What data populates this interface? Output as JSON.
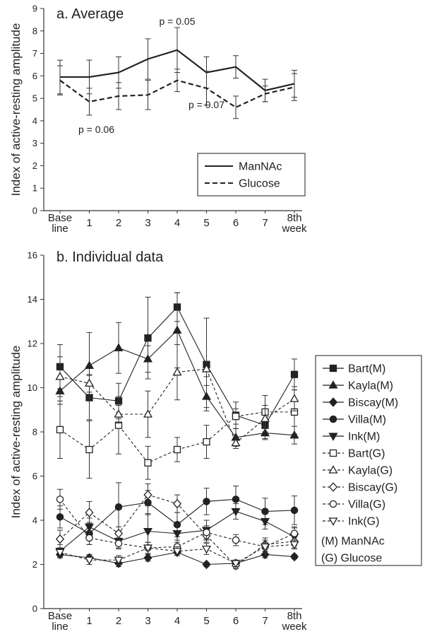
{
  "chart_data": [
    {
      "type": "line",
      "title": "a. Average",
      "ylabel": "Index of active-resting amplitude",
      "ylim": [
        0,
        9
      ],
      "yticks": [
        "0",
        "1",
        "2",
        "3",
        "4",
        "5",
        "6",
        "7",
        "8",
        "9"
      ],
      "categories": [
        "Base line",
        "1",
        "2",
        "3",
        "4",
        "5",
        "6",
        "7",
        "8th week"
      ],
      "legend_position": "right, lower-middle",
      "series": [
        {
          "name": "ManNAc",
          "style": "solid",
          "values": [
            5.95,
            5.95,
            6.15,
            6.75,
            7.15,
            6.15,
            6.4,
            5.35,
            5.65
          ],
          "err": [
            0.75,
            0.75,
            0.7,
            0.9,
            1.0,
            0.7,
            0.5,
            0.5,
            0.6
          ]
        },
        {
          "name": "Glucose",
          "style": "dashed",
          "values": [
            5.8,
            4.85,
            5.1,
            5.15,
            5.8,
            5.45,
            4.6,
            5.2,
            5.5
          ],
          "err": [
            0.65,
            0.6,
            0.6,
            0.65,
            0.5,
            0.75,
            0.5,
            0.35,
            0.6
          ]
        }
      ],
      "annotations": [
        {
          "text": "p = 0.05",
          "x": "4"
        },
        {
          "text": "p = 0.07",
          "x": "5"
        },
        {
          "text": "p = 0.06",
          "x": "1"
        }
      ]
    },
    {
      "type": "line",
      "title": "b. Individual data",
      "ylabel": "Index of active-resting amplitude",
      "ylim": [
        0,
        16
      ],
      "yticks": [
        "0",
        "2",
        "4",
        "6",
        "8",
        "10",
        "12",
        "14",
        "16"
      ],
      "categories": [
        "Base line",
        "1",
        "2",
        "3",
        "4",
        "5",
        "6",
        "7",
        "8th week"
      ],
      "legend_position": "right, outside",
      "legend_notes": [
        "(M) ManNAc",
        "(G) Glucose"
      ],
      "series": [
        {
          "name": "Bart(M)",
          "marker": "square",
          "filled": true,
          "style": "solid",
          "values": [
            10.95,
            9.55,
            9.4,
            12.25,
            13.65,
            11.05,
            8.75,
            8.3,
            10.6
          ],
          "err": [
            1.0,
            1.0,
            0.8,
            1.85,
            0.65,
            2.1,
            0.6,
            0.6,
            0.7
          ]
        },
        {
          "name": "Kayla(M)",
          "marker": "triangle-up",
          "filled": true,
          "style": "solid",
          "values": [
            9.85,
            11.0,
            11.8,
            11.3,
            12.6,
            9.6,
            7.75,
            7.95,
            7.85
          ],
          "err": [
            0.6,
            1.5,
            1.15,
            0.6,
            1.7,
            0.5,
            0.4,
            0.3,
            0.4
          ]
        },
        {
          "name": "Biscay(M)",
          "marker": "diamond",
          "filled": true,
          "style": "solid",
          "values": [
            2.45,
            2.3,
            2.05,
            2.3,
            2.55,
            2.0,
            2.05,
            2.45,
            2.35
          ],
          "err": [
            0.15,
            0.15,
            0.15,
            0.15,
            0.15,
            0.1,
            0.1,
            0.15,
            0.1
          ]
        },
        {
          "name": "Villa(M)",
          "marker": "circle",
          "filled": true,
          "style": "solid",
          "values": [
            4.15,
            3.4,
            4.6,
            4.8,
            3.8,
            4.85,
            4.95,
            4.4,
            4.45
          ],
          "err": [
            0.5,
            0.5,
            1.1,
            0.55,
            0.55,
            0.6,
            0.6,
            0.6,
            0.65
          ]
        },
        {
          "name": "Ink(M)",
          "marker": "triangle-down",
          "filled": true,
          "style": "solid",
          "values": [
            2.6,
            3.7,
            3.05,
            3.5,
            3.4,
            3.55,
            4.4,
            3.95,
            3.25
          ],
          "err": [
            0.3,
            0.4,
            0.3,
            0.8,
            0.4,
            0.45,
            0.35,
            0.35,
            0.4
          ]
        },
        {
          "name": "Bart(G)",
          "marker": "square",
          "filled": false,
          "style": "dashed",
          "values": [
            8.1,
            7.2,
            8.3,
            6.6,
            7.2,
            7.55,
            8.7,
            8.9,
            8.9
          ],
          "err": [
            1.3,
            1.3,
            1.3,
            0.75,
            0.55,
            0.75,
            0.35,
            0.75,
            1.0
          ]
        },
        {
          "name": "Kayla(G)",
          "marker": "triangle-up",
          "filled": false,
          "style": "dashed",
          "values": [
            10.5,
            10.2,
            8.8,
            8.8,
            10.7,
            10.85,
            7.5,
            8.6,
            9.5
          ],
          "err": [
            0.9,
            0.4,
            0.4,
            1.05,
            1.25,
            0.35,
            0.25,
            0.6,
            0.55
          ]
        },
        {
          "name": "Biscay(G)",
          "marker": "diamond",
          "filled": false,
          "style": "dashed",
          "values": [
            3.15,
            4.35,
            3.4,
            5.15,
            4.75,
            3.3,
            1.95,
            2.9,
            3.05
          ],
          "err": [
            0.4,
            0.5,
            0.3,
            0.5,
            0.4,
            0.3,
            0.15,
            0.3,
            0.3
          ]
        },
        {
          "name": "Villa(G)",
          "marker": "circle",
          "filled": false,
          "style": "dashed",
          "values": [
            4.95,
            3.2,
            2.95,
            2.75,
            2.8,
            3.45,
            3.1,
            2.8,
            3.4
          ],
          "err": [
            0.45,
            0.3,
            0.25,
            0.25,
            0.3,
            0.3,
            0.25,
            0.3,
            0.3
          ]
        },
        {
          "name": "Ink(G)",
          "marker": "triangle-down",
          "filled": false,
          "style": "dashed",
          "values": [
            2.55,
            2.2,
            2.2,
            2.75,
            2.6,
            2.7,
            2.05,
            2.8,
            2.9
          ],
          "err": [
            0.2,
            0.2,
            0.2,
            0.25,
            0.2,
            0.25,
            0.15,
            0.2,
            0.2
          ]
        }
      ]
    }
  ]
}
